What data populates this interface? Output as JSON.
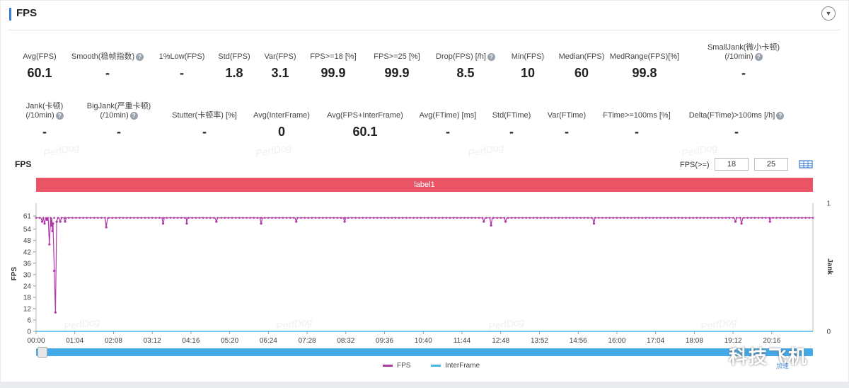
{
  "header": {
    "title": "FPS",
    "collapse_icon": "▼"
  },
  "metrics_row1": [
    {
      "label": "Avg(FPS)",
      "value": "60.1",
      "help": false
    },
    {
      "label": "Smooth(稳帧指数)",
      "value": "-",
      "help": true
    },
    {
      "label": "1%Low(FPS)",
      "value": "-",
      "help": false
    },
    {
      "label": "Std(FPS)",
      "value": "1.8",
      "help": false
    },
    {
      "label": "Var(FPS)",
      "value": "3.1",
      "help": false
    },
    {
      "label": "FPS>=18 [%]",
      "value": "99.9",
      "help": false
    },
    {
      "label": "FPS>=25 [%]",
      "value": "99.9",
      "help": false
    },
    {
      "label": "Drop(FPS) [/h]",
      "value": "8.5",
      "help": true
    },
    {
      "label": "Min(FPS)",
      "value": "10",
      "help": false
    },
    {
      "label": "Median(FPS)",
      "value": "60",
      "help": false
    },
    {
      "label": "MedRange(FPS)[%]",
      "value": "99.8",
      "help": false
    },
    {
      "label": "SmallJank(微小卡顿)",
      "label2": "(/10min)",
      "value": "-",
      "help": true
    }
  ],
  "metrics_row2": [
    {
      "label": "Jank(卡顿)",
      "label2": "(/10min)",
      "value": "-",
      "help": true
    },
    {
      "label": "BigJank(严重卡顿)",
      "label2": "(/10min)",
      "value": "-",
      "help": true
    },
    {
      "label": "Stutter(卡顿率) [%]",
      "value": "-",
      "help": false
    },
    {
      "label": "Avg(InterFrame)",
      "value": "0",
      "help": false
    },
    {
      "label": "Avg(FPS+InterFrame)",
      "value": "60.1",
      "help": false
    },
    {
      "label": "Avg(FTime) [ms]",
      "value": "-",
      "help": false
    },
    {
      "label": "Std(FTime)",
      "value": "-",
      "help": false
    },
    {
      "label": "Var(FTime)",
      "value": "-",
      "help": false
    },
    {
      "label": "FTime>=100ms [%]",
      "value": "-",
      "help": false
    },
    {
      "label": "Delta(FTime)>100ms [/h]",
      "value": "-",
      "help": true
    }
  ],
  "watermark_text": "PerfDog",
  "chart_title": "FPS",
  "threshold": {
    "label": "FPS(>=)",
    "value1": "18",
    "value2": "25"
  },
  "label_band": "label1",
  "legend": [
    {
      "name": "FPS",
      "color": "#b03aa5"
    },
    {
      "name": "InterFrame",
      "color": "#43b8e8"
    }
  ],
  "overlay": {
    "brand": "科技飞机",
    "small": "加速"
  },
  "chart_data": {
    "type": "line",
    "ylabel": "FPS",
    "y2label": "Jank",
    "ylim": [
      0,
      61
    ],
    "y_ticks": [
      0,
      6,
      12,
      18,
      24,
      30,
      36,
      42,
      48,
      54,
      61
    ],
    "y2_ticks": [
      0,
      1
    ],
    "xlim_seconds": [
      0,
      1284
    ],
    "x_tick_labels": [
      "00:00",
      "01:04",
      "02:08",
      "03:12",
      "04:16",
      "05:20",
      "06:24",
      "07:28",
      "08:32",
      "09:36",
      "10:40",
      "11:44",
      "12:48",
      "13:52",
      "14:56",
      "16:00",
      "17:04",
      "18:08",
      "19:12",
      "20:16"
    ],
    "grid": false,
    "legend_position": "bottom",
    "series": [
      {
        "name": "FPS",
        "baseline": 60,
        "dips": [
          {
            "t": 10,
            "v": 58
          },
          {
            "t": 14,
            "v": 57
          },
          {
            "t": 18,
            "v": 59
          },
          {
            "t": 22,
            "v": 46
          },
          {
            "t": 25,
            "v": 56
          },
          {
            "t": 27,
            "v": 53
          },
          {
            "t": 28,
            "v": 57
          },
          {
            "t": 30,
            "v": 32
          },
          {
            "t": 32,
            "v": 10
          },
          {
            "t": 34,
            "v": 58
          },
          {
            "t": 40,
            "v": 58
          },
          {
            "t": 48,
            "v": 58
          },
          {
            "t": 116,
            "v": 55
          },
          {
            "t": 210,
            "v": 57
          },
          {
            "t": 249,
            "v": 57
          },
          {
            "t": 298,
            "v": 58
          },
          {
            "t": 372,
            "v": 57
          },
          {
            "t": 430,
            "v": 58
          },
          {
            "t": 510,
            "v": 58
          },
          {
            "t": 740,
            "v": 58
          },
          {
            "t": 752,
            "v": 56
          },
          {
            "t": 776,
            "v": 58
          },
          {
            "t": 922,
            "v": 57
          },
          {
            "t": 1156,
            "v": 58
          },
          {
            "t": 1166,
            "v": 57
          },
          {
            "t": 1213,
            "v": 58
          }
        ]
      },
      {
        "name": "InterFrame",
        "values": [
          0,
          0
        ]
      }
    ]
  }
}
